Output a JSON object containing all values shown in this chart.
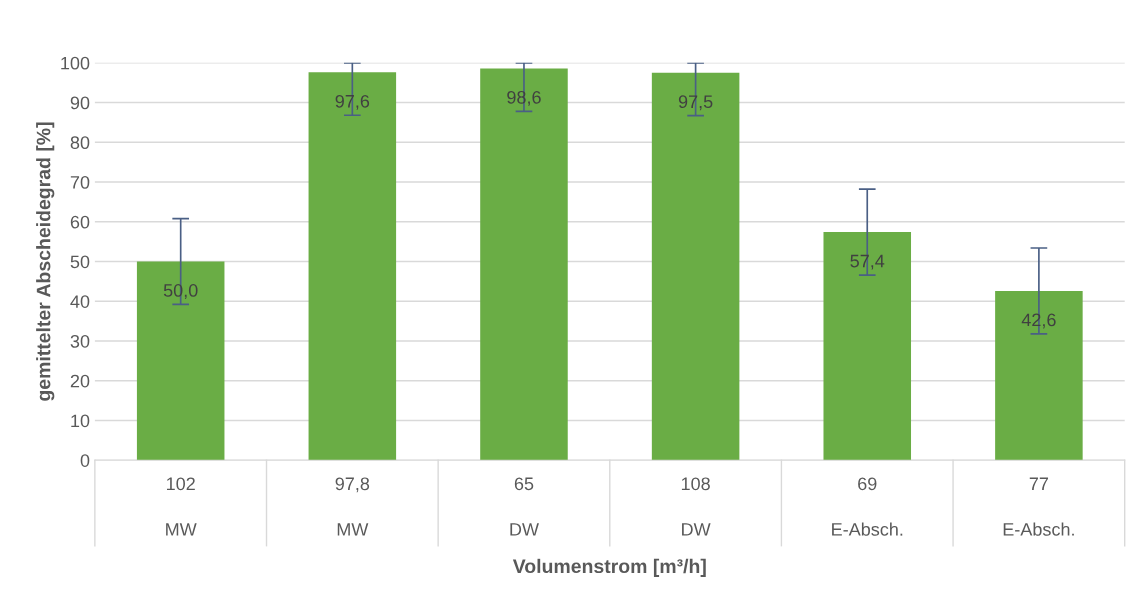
{
  "chart_data": {
    "type": "bar",
    "xlabel": "Volumenstrom [m³/h]",
    "ylabel": "gemittelter Abscheidegrad [%]",
    "categories": [
      "102\nMW",
      "97,8\nMW",
      "65\nDW",
      "108\nDW",
      "69\nE-Absch.",
      "77\nE-Absch."
    ],
    "values": [
      50.0,
      97.6,
      98.6,
      97.5,
      57.4,
      42.6
    ],
    "value_labels": [
      "50,0",
      "97,6",
      "98,6",
      "97,5",
      "57,4",
      "42,6"
    ],
    "errors": [
      10.8,
      [
        86.8,
        100
      ],
      [
        87.8,
        100
      ],
      [
        86.7,
        100
      ],
      10.8,
      10.8
    ],
    "color": "#6aad45",
    "ylim": [
      0,
      100
    ],
    "yticks": [
      0,
      10,
      20,
      30,
      40,
      50,
      60,
      70,
      80,
      90,
      100
    ],
    "grid": "y"
  }
}
